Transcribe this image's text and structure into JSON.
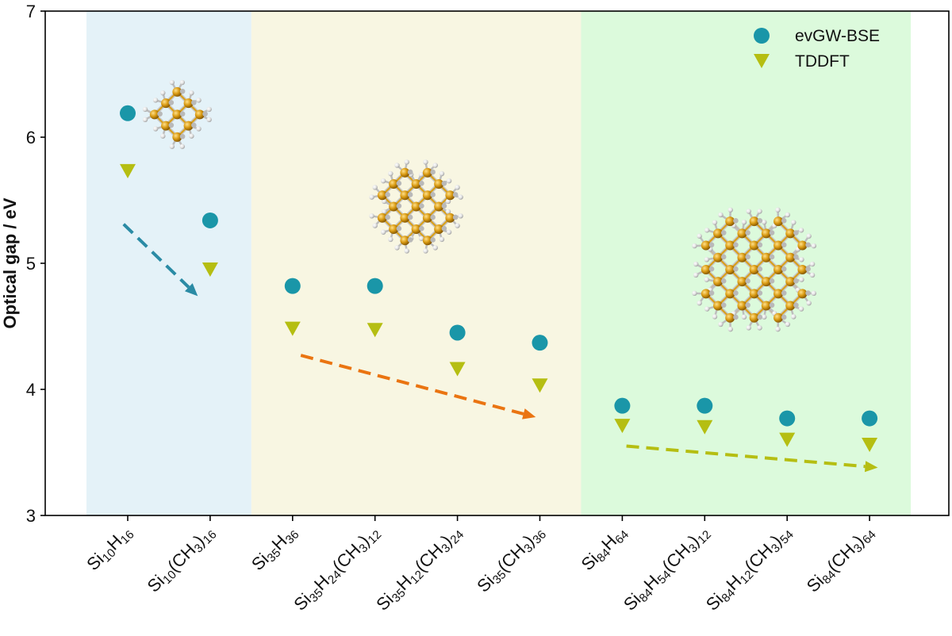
{
  "chart_data": {
    "type": "scatter",
    "title": "",
    "xlabel": "",
    "ylabel": "Optical gap / eV",
    "ylim": [
      3,
      7
    ],
    "yticks": [
      3,
      4,
      5,
      6,
      7
    ],
    "grid": false,
    "legend_position": "top-right",
    "categories": [
      {
        "formula": "Si10H16",
        "parts": [
          [
            "Si",
            ""
          ],
          [
            "10",
            "sub"
          ],
          [
            "H",
            ""
          ],
          [
            "16",
            "sub"
          ]
        ]
      },
      {
        "formula": "Si10(CH3)16",
        "parts": [
          [
            "Si",
            ""
          ],
          [
            "10",
            "sub"
          ],
          [
            "(CH",
            ""
          ],
          [
            "3",
            "sub"
          ],
          [
            ")",
            ""
          ],
          [
            "16",
            "sub"
          ]
        ]
      },
      {
        "formula": "Si35H36",
        "parts": [
          [
            "Si",
            ""
          ],
          [
            "35",
            "sub"
          ],
          [
            "H",
            ""
          ],
          [
            "36",
            "sub"
          ]
        ]
      },
      {
        "formula": "Si35H24(CH3)12",
        "parts": [
          [
            "Si",
            ""
          ],
          [
            "35",
            "sub"
          ],
          [
            "H",
            ""
          ],
          [
            "24",
            "sub"
          ],
          [
            "(CH",
            ""
          ],
          [
            "3",
            "sub"
          ],
          [
            ")",
            ""
          ],
          [
            "12",
            "sub"
          ]
        ]
      },
      {
        "formula": "Si35H12(CH3)24",
        "parts": [
          [
            "Si",
            ""
          ],
          [
            "35",
            "sub"
          ],
          [
            "H",
            ""
          ],
          [
            "12",
            "sub"
          ],
          [
            "(CH",
            ""
          ],
          [
            "3",
            "sub"
          ],
          [
            ")",
            ""
          ],
          [
            "24",
            "sub"
          ]
        ]
      },
      {
        "formula": "Si35(CH3)36",
        "parts": [
          [
            "Si",
            ""
          ],
          [
            "35",
            "sub"
          ],
          [
            "(CH",
            ""
          ],
          [
            "3",
            "sub"
          ],
          [
            ")",
            ""
          ],
          [
            "36",
            "sub"
          ]
        ]
      },
      {
        "formula": "Si84H64",
        "parts": [
          [
            "Si",
            ""
          ],
          [
            "84",
            "sub"
          ],
          [
            "H",
            ""
          ],
          [
            "64",
            "sub"
          ]
        ]
      },
      {
        "formula": "Si84H54(CH3)12",
        "parts": [
          [
            "Si",
            ""
          ],
          [
            "84",
            "sub"
          ],
          [
            "H",
            ""
          ],
          [
            "54",
            "sub"
          ],
          [
            "(CH",
            ""
          ],
          [
            "3",
            "sub"
          ],
          [
            ")",
            ""
          ],
          [
            "12",
            "sub"
          ]
        ]
      },
      {
        "formula": "Si84H12(CH3)54",
        "parts": [
          [
            "Si",
            ""
          ],
          [
            "84",
            "sub"
          ],
          [
            "H",
            ""
          ],
          [
            "12",
            "sub"
          ],
          [
            "(CH",
            ""
          ],
          [
            "3",
            "sub"
          ],
          [
            ")",
            ""
          ],
          [
            "54",
            "sub"
          ]
        ]
      },
      {
        "formula": "Si84(CH3)64",
        "parts": [
          [
            "Si",
            ""
          ],
          [
            "84",
            "sub"
          ],
          [
            "(CH",
            ""
          ],
          [
            "3",
            "sub"
          ],
          [
            ")",
            ""
          ],
          [
            "64",
            "sub"
          ]
        ]
      }
    ],
    "series": [
      {
        "name": "evGW-BSE",
        "marker": "circle",
        "color": "#1a96a8",
        "values": [
          6.19,
          5.34,
          4.82,
          4.82,
          4.45,
          4.37,
          3.87,
          3.87,
          3.77,
          3.77
        ]
      },
      {
        "name": "TDDFT",
        "marker": "triangle-down",
        "color": "#b5be12",
        "values": [
          5.73,
          4.95,
          4.48,
          4.47,
          4.16,
          4.03,
          3.71,
          3.7,
          3.6,
          3.56
        ]
      }
    ],
    "regions": [
      {
        "name": "Si10 cluster family",
        "from_index": 0,
        "to_index": 1,
        "color": "#e4f2f8"
      },
      {
        "name": "Si35 cluster family",
        "from_index": 2,
        "to_index": 5,
        "color": "#f8f6e2"
      },
      {
        "name": "Si84 cluster family",
        "from_index": 6,
        "to_index": 9,
        "color": "#dcfadc"
      }
    ],
    "trend_arrows": [
      {
        "from": [
          -0.05,
          5.31
        ],
        "to": [
          0.85,
          4.74
        ],
        "color": "#2a8ba5"
      },
      {
        "from": [
          2.1,
          4.27
        ],
        "to": [
          4.95,
          3.78
        ],
        "color": "#ea7411"
      },
      {
        "from": [
          6.05,
          3.55
        ],
        "to": [
          9.1,
          3.38
        ],
        "color": "#b5be12"
      }
    ],
    "cluster_images": [
      {
        "name": "Si10 cluster structure",
        "center": [
          0.6,
          6.18
        ],
        "scale": "small"
      },
      {
        "name": "Si35 cluster structure",
        "center": [
          3.5,
          5.45
        ],
        "scale": "medium"
      },
      {
        "name": "Si84 cluster structure",
        "center": [
          7.6,
          4.95
        ],
        "scale": "large"
      }
    ]
  }
}
